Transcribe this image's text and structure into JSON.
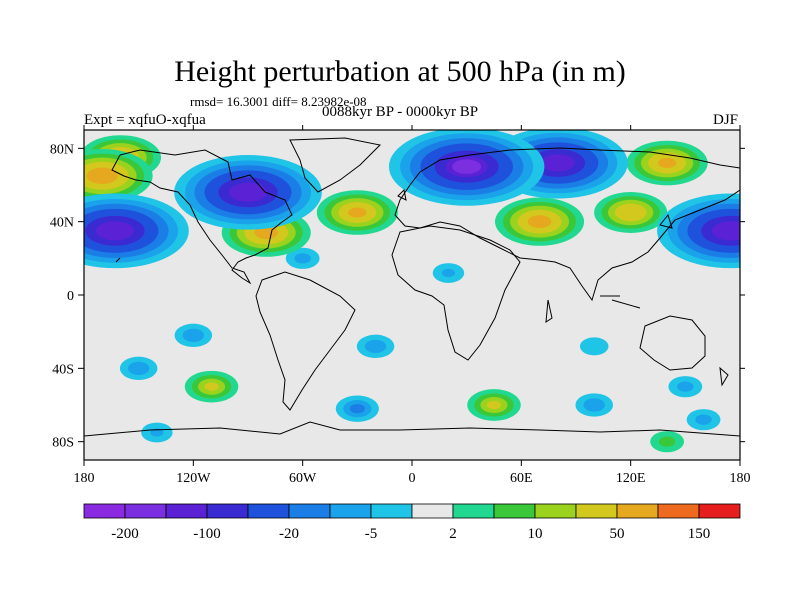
{
  "chart_data": {
    "type": "heatmap",
    "title": "Height perturbation at 500 hPa (in m)",
    "stats_line": "rmsd= 16.3001 diff= 8.23982e-08",
    "subtitle_left": "Expt = xqfuO-xqfua",
    "subtitle_center": "0088kyr BP - 0000kyr BP",
    "subtitle_right": "DJF",
    "projection": "cylindrical-equidistant",
    "xlim": [
      -180,
      180
    ],
    "ylim": [
      -90,
      90
    ],
    "x_ticks": [
      {
        "value": -180,
        "label": "180"
      },
      {
        "value": -120,
        "label": "120W"
      },
      {
        "value": -60,
        "label": "60W"
      },
      {
        "value": 0,
        "label": "0"
      },
      {
        "value": 60,
        "label": "60E"
      },
      {
        "value": 120,
        "label": "120E"
      },
      {
        "value": 180,
        "label": "180"
      }
    ],
    "y_ticks": [
      {
        "value": 80,
        "label": "80N"
      },
      {
        "value": 40,
        "label": "40N"
      },
      {
        "value": 0,
        "label": "0"
      },
      {
        "value": -40,
        "label": "40S"
      },
      {
        "value": -80,
        "label": "80S"
      }
    ],
    "colorbar": {
      "levels": [
        -200,
        -150,
        -100,
        -50,
        -20,
        -10,
        -5,
        -2,
        2,
        5,
        10,
        20,
        50,
        100,
        150,
        200
      ],
      "colors": [
        "#8a2be2",
        "#7b2fe0",
        "#5a22d4",
        "#3a2ad2",
        "#1f52dc",
        "#1a7ee6",
        "#1aa2ea",
        "#20c4e6",
        "#e8e8e8",
        "#22d890",
        "#3ac83a",
        "#9ad21e",
        "#d2c81e",
        "#e6a81e",
        "#ee6a1e",
        "#e61e1e"
      ],
      "labels": [
        {
          "level": -200,
          "label": "-200"
        },
        {
          "level": -100,
          "label": "-100"
        },
        {
          "level": -20,
          "label": "-20"
        },
        {
          "level": -5,
          "label": "-5"
        },
        {
          "level": 2,
          "label": "2"
        },
        {
          "level": 10,
          "label": "10"
        },
        {
          "level": 50,
          "label": "50"
        },
        {
          "level": 150,
          "label": "150"
        }
      ]
    },
    "anomalies": [
      {
        "lon": -163,
        "lat": 35,
        "value": -140
      },
      {
        "lon": 175,
        "lat": 35,
        "value": -140
      },
      {
        "lon": -90,
        "lat": 56,
        "value": -140
      },
      {
        "lon": 30,
        "lat": 70,
        "value": -150
      },
      {
        "lon": 80,
        "lat": 72,
        "value": -130
      },
      {
        "lon": 140,
        "lat": 72,
        "value": 55
      },
      {
        "lon": -160,
        "lat": 75,
        "value": 55
      },
      {
        "lon": -170,
        "lat": 65,
        "value": 80
      },
      {
        "lon": -80,
        "lat": 34,
        "value": 65
      },
      {
        "lon": -30,
        "lat": 45,
        "value": 55
      },
      {
        "lon": 70,
        "lat": 40,
        "value": 65
      },
      {
        "lon": 120,
        "lat": 45,
        "value": 45
      },
      {
        "lon": -60,
        "lat": 20,
        "value": -6
      },
      {
        "lon": 20,
        "lat": 12,
        "value": -5
      },
      {
        "lon": -120,
        "lat": -22,
        "value": -8
      },
      {
        "lon": -20,
        "lat": -28,
        "value": -8
      },
      {
        "lon": 100,
        "lat": -28,
        "value": -4
      },
      {
        "lon": -150,
        "lat": -40,
        "value": -8
      },
      {
        "lon": -110,
        "lat": -50,
        "value": 22
      },
      {
        "lon": -30,
        "lat": -62,
        "value": -12
      },
      {
        "lon": 45,
        "lat": -60,
        "value": 22
      },
      {
        "lon": 100,
        "lat": -60,
        "value": -8
      },
      {
        "lon": 150,
        "lat": -50,
        "value": -6
      },
      {
        "lon": 160,
        "lat": -68,
        "value": -6
      },
      {
        "lon": 140,
        "lat": -80,
        "value": 6
      },
      {
        "lon": -140,
        "lat": -75,
        "value": -5
      }
    ]
  }
}
